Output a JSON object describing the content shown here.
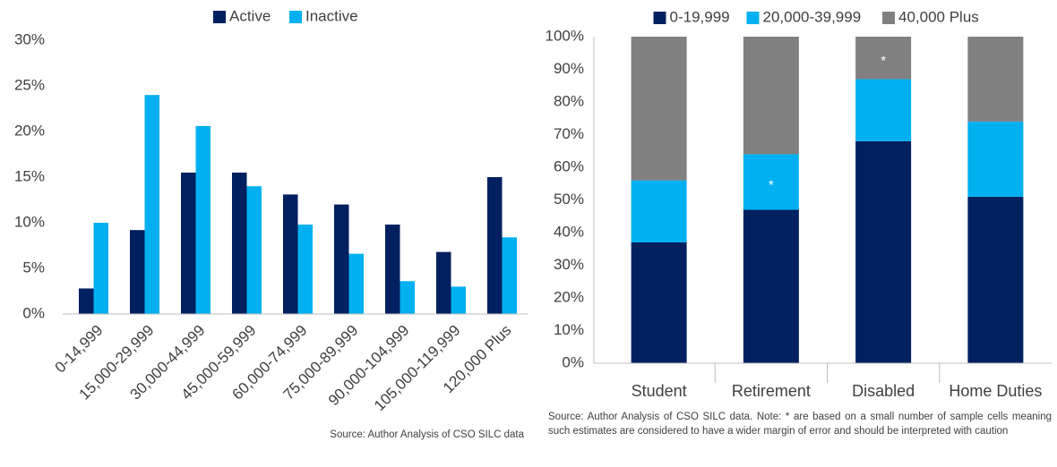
{
  "chart_data": [
    {
      "type": "bar",
      "categories": [
        "0-14,999",
        "15,000-29,999",
        "30,000-44,999",
        "45,000-59,999",
        "60,000-74,999",
        "75,000-89,999",
        "90,000-104,999",
        "105,000-119,999",
        "120,000 Plus"
      ],
      "series": [
        {
          "name": "Active",
          "color": "#002060",
          "values": [
            2.8,
            9.2,
            15.5,
            15.5,
            13.1,
            12,
            9.8,
            6.8,
            15
          ]
        },
        {
          "name": "Inactive",
          "color": "#00b0f0",
          "values": [
            10,
            24,
            20.6,
            14,
            9.8,
            6.6,
            3.6,
            3,
            8.4
          ]
        }
      ],
      "ylim": [
        0,
        30
      ],
      "yticks": [
        {
          "value": 0,
          "label": "0%"
        },
        {
          "value": 5,
          "label": "5%"
        },
        {
          "value": 10,
          "label": "10%"
        },
        {
          "value": 15,
          "label": "15%"
        },
        {
          "value": 20,
          "label": "20%"
        },
        {
          "value": 25,
          "label": "25%"
        },
        {
          "value": 30,
          "label": "30%"
        }
      ],
      "legend": "top",
      "source": "Source: Author Analysis of CSO SILC data"
    },
    {
      "type": "stacked_bar",
      "categories": [
        "Student",
        "Retirement",
        "Disabled",
        "Home Duties"
      ],
      "series": [
        {
          "name": "0-19,999",
          "color": "#002060",
          "values": [
            37,
            47,
            68,
            51
          ]
        },
        {
          "name": "20,000-39,999",
          "color": "#00b0f0",
          "values": [
            19,
            17,
            19,
            23
          ]
        },
        {
          "name": "40,000 Plus",
          "color": "#808080",
          "values": [
            44,
            36,
            13,
            26
          ]
        }
      ],
      "ylim": [
        0,
        100
      ],
      "yticks": [
        {
          "value": 0,
          "label": "0%"
        },
        {
          "value": 10,
          "label": "10%"
        },
        {
          "value": 20,
          "label": "20%"
        },
        {
          "value": 30,
          "label": "30%"
        },
        {
          "value": 40,
          "label": "40%"
        },
        {
          "value": 50,
          "label": "50%"
        },
        {
          "value": 60,
          "label": "60%"
        },
        {
          "value": 70,
          "label": "70%"
        },
        {
          "value": 80,
          "label": "80%"
        },
        {
          "value": 90,
          "label": "90%"
        },
        {
          "value": 100,
          "label": "100%"
        }
      ],
      "annotations": [
        {
          "text": "*",
          "category": "Retirement",
          "series": "20,000-39,999"
        },
        {
          "text": "*",
          "category": "Disabled",
          "series": "40,000 Plus"
        }
      ],
      "legend": "top",
      "source": "Source: Author Analysis of CSO SILC data. Note: * are based on a small number of sample cells meaning such estimates are considered to have  a wider margin of error and should be interpreted with caution"
    }
  ]
}
